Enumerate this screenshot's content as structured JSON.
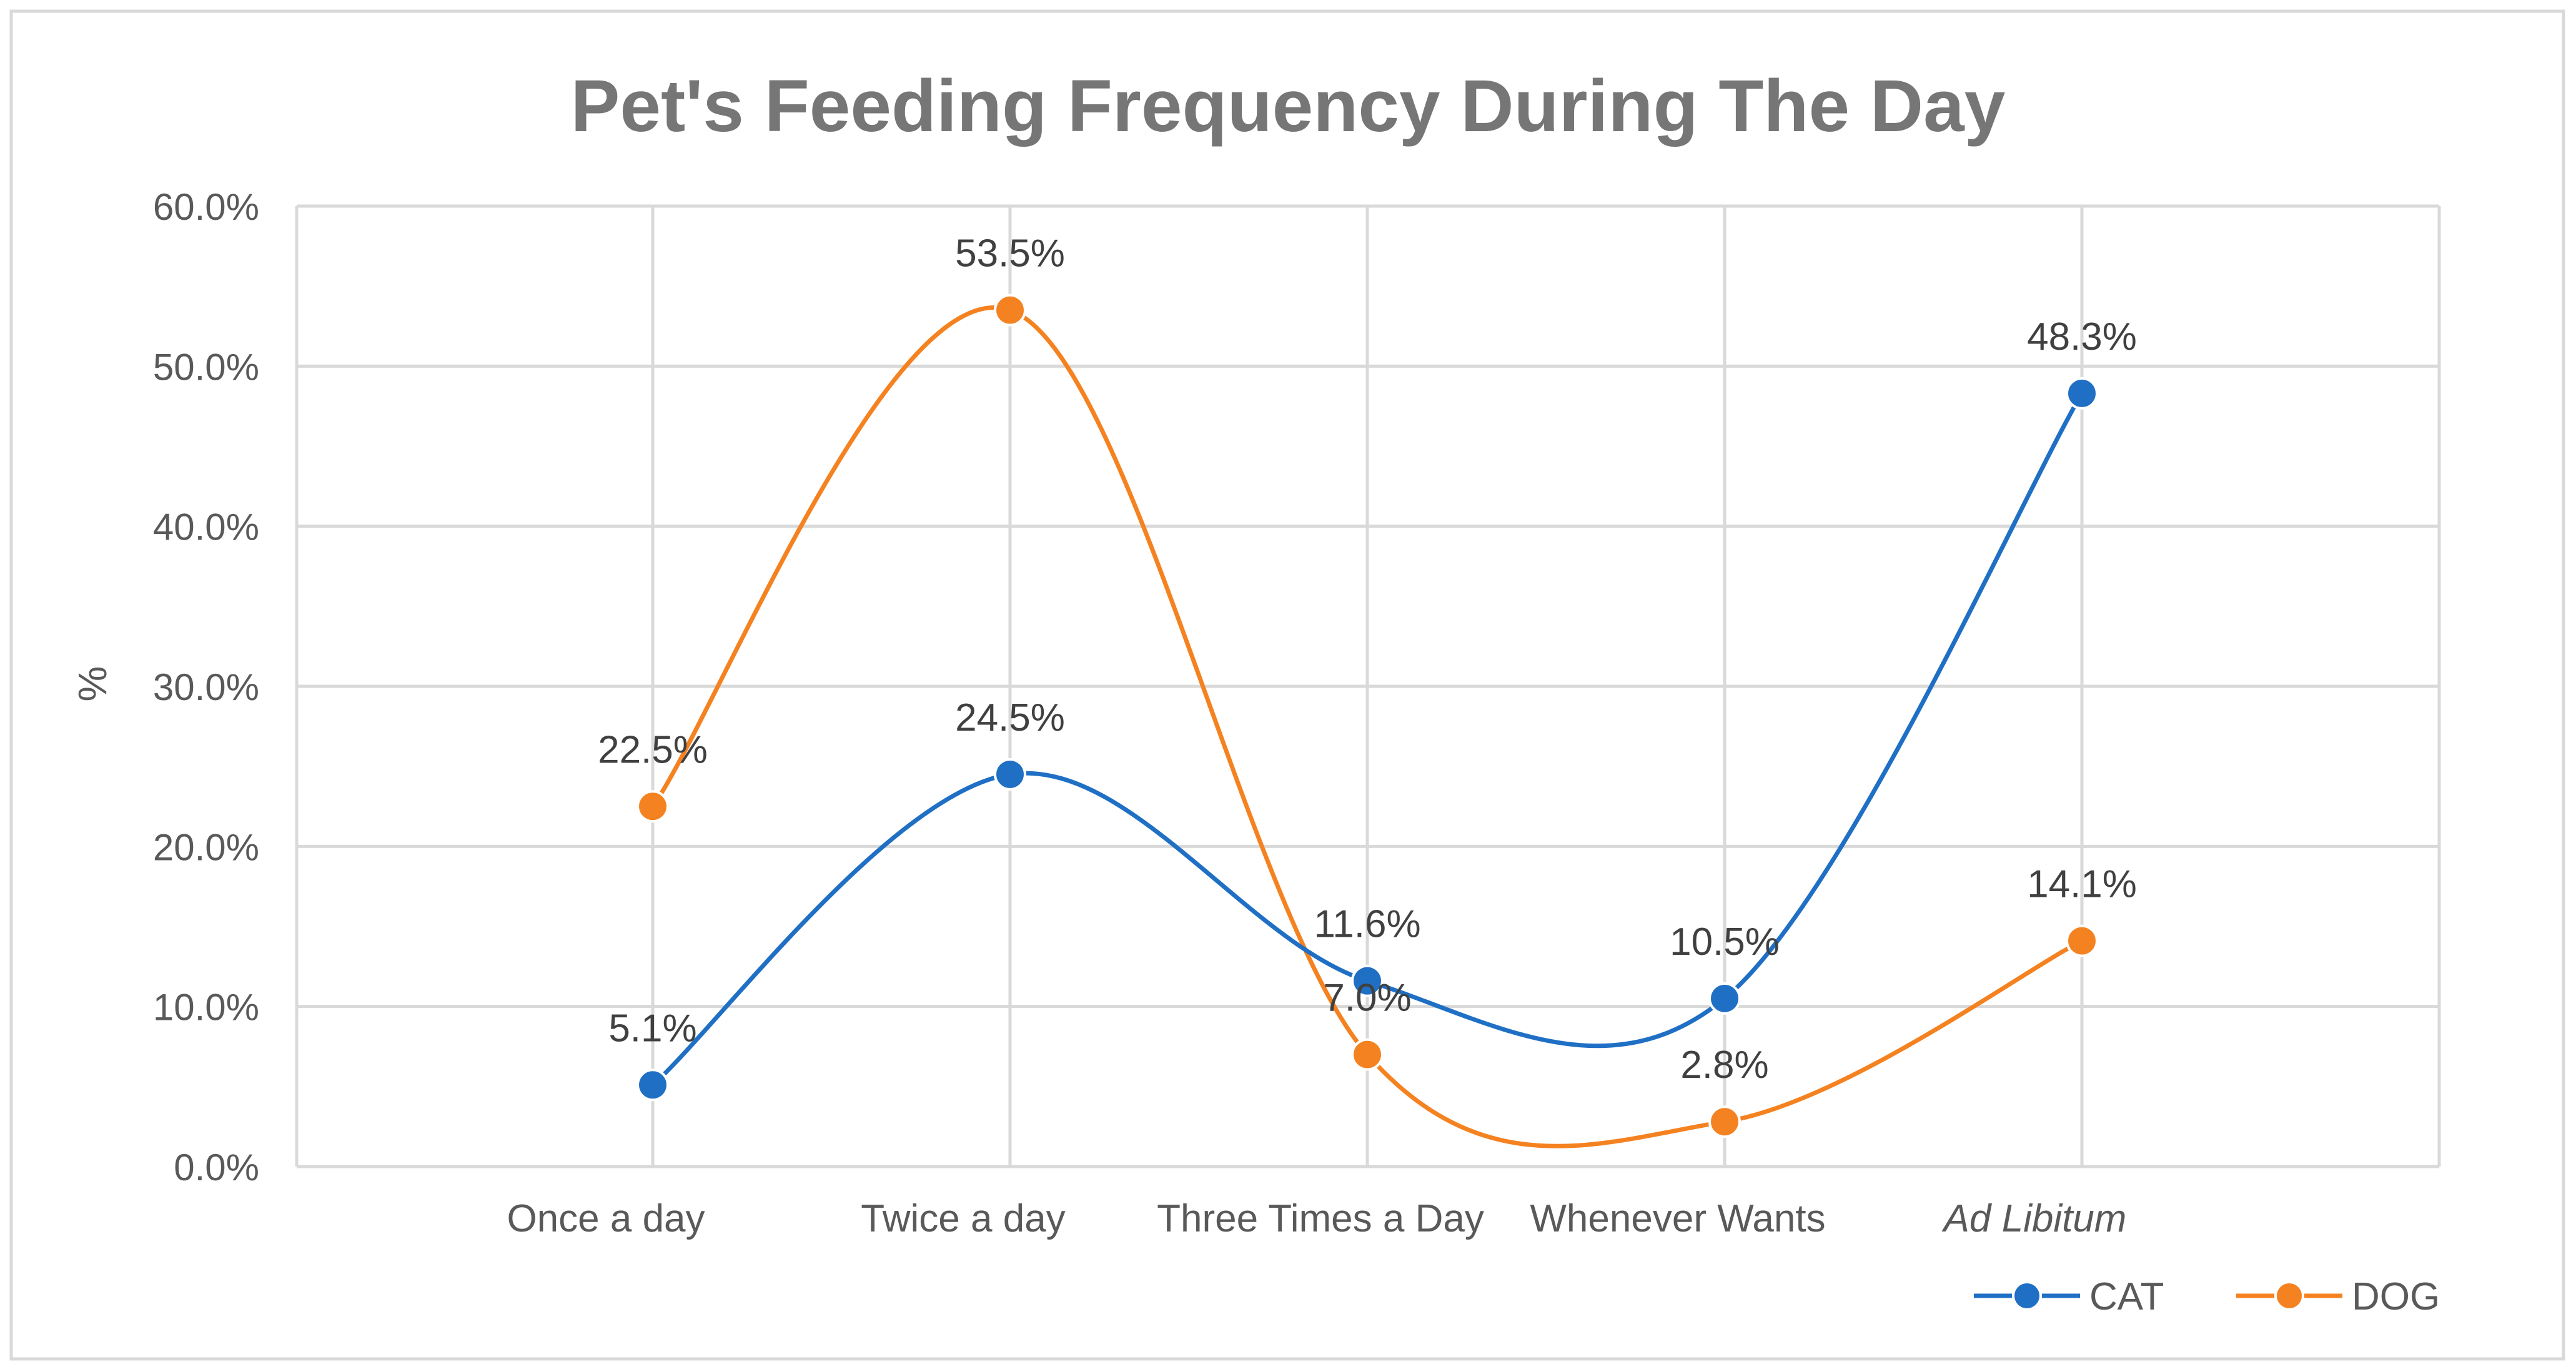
{
  "chart_data": {
    "type": "line",
    "title": "Pet's Feeding Frequency During The Day",
    "xlabel": "",
    "ylabel": "%",
    "categories": [
      "Once a day",
      "Twice a day",
      "Three Times a Day",
      "Whenever Wants",
      "Ad Libitum"
    ],
    "category_styles": [
      "normal",
      "normal",
      "normal",
      "normal",
      "italic"
    ],
    "ylim": [
      0,
      60
    ],
    "yticks": [
      0,
      10,
      20,
      30,
      40,
      50,
      60
    ],
    "ytick_labels": [
      "0.0%",
      "10.0%",
      "20.0%",
      "30.0%",
      "40.0%",
      "50.0%",
      "60.0%"
    ],
    "grid": true,
    "smooth": true,
    "legend_position": "bottom-right",
    "series": [
      {
        "name": "CAT",
        "color": "#1F6FC5",
        "values": [
          5.1,
          24.5,
          11.6,
          10.5,
          48.3
        ],
        "labels": [
          "5.1%",
          "24.5%",
          "11.6%",
          "10.5%",
          "48.3%"
        ]
      },
      {
        "name": "DOG",
        "color": "#F58220",
        "values": [
          22.5,
          53.5,
          7.0,
          2.8,
          14.1
        ],
        "labels": [
          "22.5%",
          "53.5%",
          "7.0%",
          "2.8%",
          "14.1%"
        ]
      }
    ],
    "colors": {
      "grid": "#D9D9D9",
      "border": "#D9D9D9",
      "text": "#595959",
      "title": "#767676"
    }
  }
}
